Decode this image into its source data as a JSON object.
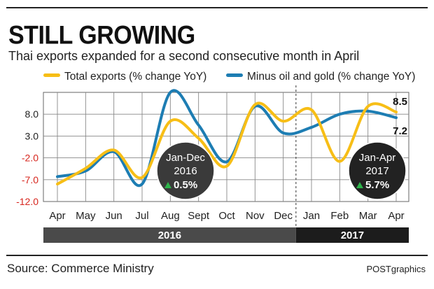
{
  "header": {
    "title": "STILL GROWING",
    "subtitle": "Thai exports expanded for a second consecutive month in April"
  },
  "legend": {
    "total_label": "Total exports (% change YoY)",
    "minus_label": "Minus oil and gold (% change YoY)"
  },
  "footer": {
    "source": "Source: Commerce Ministry",
    "credit": "POSTgraphics"
  },
  "colors": {
    "total": "#F7BE16",
    "minus": "#1D7DB3",
    "negative_tick": "#D7261E",
    "callout": "#3A3A3A",
    "callout_dark": "#222222",
    "band_2016": "#4A4A4A",
    "band_2017": "#1C1C1C",
    "up_arrow": "#2DB34A"
  },
  "callouts": [
    {
      "period": "Jan-Dec",
      "year": "2016",
      "change": "0.5%"
    },
    {
      "period": "Jan-Apr",
      "year": "2017",
      "change": "5.7%"
    }
  ],
  "end_labels": {
    "total": "8.5",
    "minus": "7.2"
  },
  "chart_data": {
    "type": "line",
    "categories": [
      "Apr",
      "May",
      "Jun",
      "Jul",
      "Aug",
      "Sept",
      "Oct",
      "Nov",
      "Dec",
      "Jan",
      "Feb",
      "Mar",
      "Apr"
    ],
    "year_groups": [
      {
        "label": "2016",
        "months": [
          "Apr",
          "May",
          "Jun",
          "Jul",
          "Aug",
          "Sept",
          "Oct",
          "Nov",
          "Dec"
        ]
      },
      {
        "label": "2017",
        "months": [
          "Jan",
          "Feb",
          "Mar",
          "Apr"
        ]
      }
    ],
    "series": [
      {
        "name": "Total exports (% change YoY)",
        "values": [
          -8.0,
          -4.4,
          -0.2,
          -6.5,
          6.4,
          2.5,
          -3.9,
          10.2,
          6.4,
          9.0,
          -2.8,
          9.8,
          8.5
        ]
      },
      {
        "name": "Minus oil and gold (% change YoY)",
        "values": [
          -6.3,
          -5.0,
          -0.6,
          -8.0,
          13.0,
          5.5,
          -2.9,
          9.8,
          3.7,
          5.0,
          8.0,
          8.7,
          7.2
        ]
      }
    ],
    "y_ticks": [
      8.0,
      3.0,
      -2.0,
      -7.0,
      -12.0
    ],
    "ylim": [
      -12.0,
      13.0
    ],
    "grid": true
  }
}
